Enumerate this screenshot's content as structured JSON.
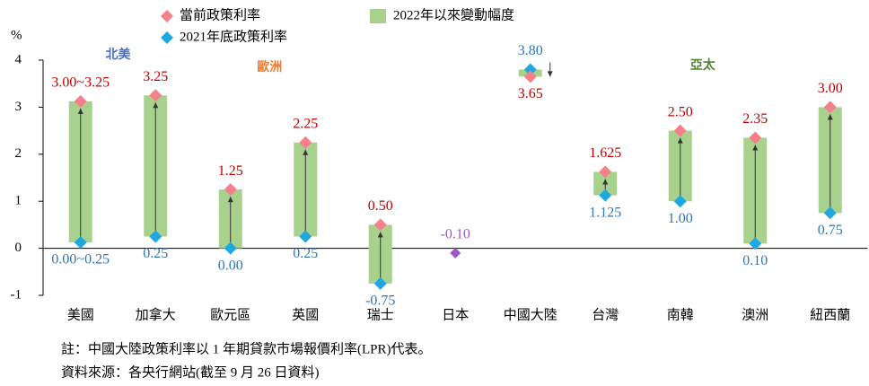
{
  "chart_data": {
    "type": "range_dot",
    "y_unit_label": "%",
    "categories": [
      "美國",
      "加拿大",
      "歐元區",
      "英國",
      "瑞士",
      "日本",
      "中國大陸",
      "台灣",
      "南韓",
      "澳洲",
      "紐西蘭"
    ],
    "series": [
      {
        "name": "當前政策利率",
        "color": "#f4808a",
        "label_color": "#c00000",
        "values": [
          3.125,
          3.25,
          1.25,
          2.25,
          0.5,
          -0.1,
          3.65,
          1.625,
          2.5,
          2.35,
          3.0
        ],
        "value_labels": [
          "3.00~3.25",
          "3.25",
          "1.25",
          "2.25",
          "0.50",
          "-0.10",
          "3.65",
          "1.625",
          "2.50",
          "2.35",
          "3.00"
        ]
      },
      {
        "name": "2021年底政策利率",
        "color": "#1fa7e0",
        "label_color": "#2e75b6",
        "values": [
          0.125,
          0.25,
          0.0,
          0.25,
          -0.75,
          -0.1,
          3.8,
          1.125,
          1.0,
          0.1,
          0.75
        ],
        "value_labels": [
          "0.00~0.25",
          "0.25",
          "0.00",
          "0.25",
          "-0.75",
          "-0.10",
          "3.80",
          "1.125",
          "1.00",
          "0.10",
          "0.75"
        ]
      }
    ],
    "range": {
      "name": "2022年以來變動幅度",
      "color": "#a9d18e"
    },
    "overlap_color": "#9b59c8",
    "regions": [
      {
        "text": "北美",
        "color": "#4472c4"
      },
      {
        "text": "歐洲",
        "color": "#ed7d31"
      },
      {
        "text": "亞太",
        "color": "#548235"
      }
    ],
    "ylim": [
      -1,
      4
    ],
    "yticks": [
      -1,
      0,
      1,
      2,
      3,
      4
    ],
    "notes": [
      "註：中國大陸政策利率以 1 年期貸款市場報價利率(LPR)代表。",
      "資料來源：各央行網站(截至 9 月 26 日資料)"
    ]
  }
}
